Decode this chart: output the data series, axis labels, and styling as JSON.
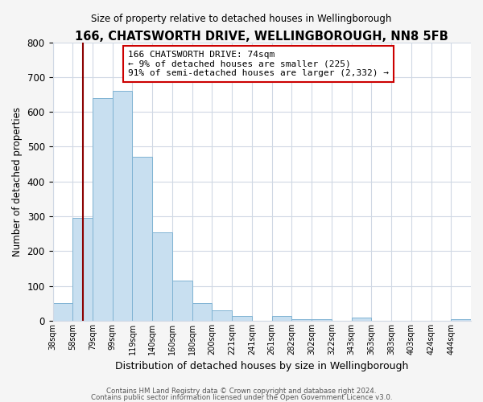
{
  "title": "166, CHATSWORTH DRIVE, WELLINGBOROUGH, NN8 5FB",
  "subtitle": "Size of property relative to detached houses in Wellingborough",
  "xlabel": "Distribution of detached houses by size in Wellingborough",
  "ylabel": "Number of detached properties",
  "bar_labels": [
    "38sqm",
    "58sqm",
    "79sqm",
    "99sqm",
    "119sqm",
    "140sqm",
    "160sqm",
    "180sqm",
    "200sqm",
    "221sqm",
    "241sqm",
    "261sqm",
    "282sqm",
    "302sqm",
    "322sqm",
    "343sqm",
    "363sqm",
    "383sqm",
    "403sqm",
    "424sqm",
    "444sqm"
  ],
  "bar_heights": [
    50,
    295,
    640,
    660,
    470,
    255,
    115,
    50,
    30,
    15,
    0,
    15,
    5,
    5,
    0,
    10,
    0,
    0,
    0,
    0,
    5
  ],
  "bar_color": "#c8dff0",
  "bar_edge_color": "#7fb3d3",
  "vline_x": 1.5,
  "vline_color": "#8b0000",
  "ylim": [
    0,
    800
  ],
  "yticks": [
    0,
    100,
    200,
    300,
    400,
    500,
    600,
    700,
    800
  ],
  "annotation_text": "166 CHATSWORTH DRIVE: 74sqm\n← 9% of detached houses are smaller (225)\n91% of semi-detached houses are larger (2,332) →",
  "annotation_box_color": "#ffffff",
  "annotation_box_edge": "#cc0000",
  "footer1": "Contains HM Land Registry data © Crown copyright and database right 2024.",
  "footer2": "Contains public sector information licensed under the Open Government Licence v3.0.",
  "bg_color": "#f5f5f5",
  "plot_bg_color": "#ffffff",
  "grid_color": "#d0d8e4"
}
